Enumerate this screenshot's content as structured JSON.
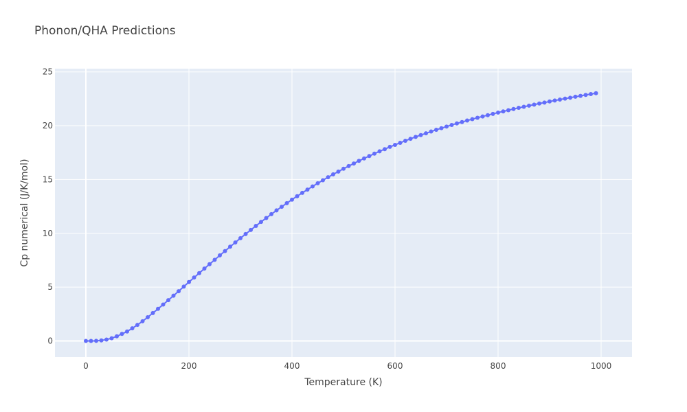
{
  "chart_data": {
    "type": "line",
    "title": "Phonon/QHA Predictions",
    "xlabel": "Temperature (K)",
    "ylabel": "Cp numerical (J/K/mol)",
    "xlim": [
      -60,
      1060
    ],
    "ylim": [
      -1.5,
      25.3
    ],
    "xticks": [
      0,
      200,
      400,
      600,
      800,
      1000
    ],
    "yticks": [
      0,
      5,
      10,
      15,
      20,
      25
    ],
    "grid": true,
    "colors": {
      "series": "#636efa",
      "plot_bg": "#e5ecf6",
      "grid": "#ffffff",
      "text": "#444444"
    },
    "series": [
      {
        "mode": "lines+markers",
        "x": [
          0,
          10,
          20,
          30,
          40,
          50,
          60,
          70,
          80,
          90,
          100,
          110,
          120,
          130,
          140,
          150,
          160,
          170,
          180,
          190,
          200,
          210,
          220,
          230,
          240,
          250,
          260,
          270,
          280,
          290,
          300,
          310,
          320,
          330,
          340,
          350,
          360,
          370,
          380,
          390,
          400,
          410,
          420,
          430,
          440,
          450,
          460,
          470,
          480,
          490,
          500,
          510,
          520,
          530,
          540,
          550,
          560,
          570,
          580,
          590,
          600,
          610,
          620,
          630,
          640,
          650,
          660,
          670,
          680,
          690,
          700,
          710,
          720,
          730,
          740,
          750,
          760,
          770,
          780,
          790,
          800,
          810,
          820,
          830,
          840,
          850,
          860,
          870,
          880,
          890,
          900,
          910,
          920,
          930,
          940,
          950,
          960,
          970,
          980,
          990
        ],
        "y": [
          0,
          0,
          0.01,
          0.05,
          0.13,
          0.25,
          0.43,
          0.65,
          0.88,
          1.17,
          1.49,
          1.83,
          2.2,
          2.59,
          2.98,
          3.38,
          3.79,
          4.2,
          4.62,
          5.05,
          5.47,
          5.89,
          6.3,
          6.72,
          7.13,
          7.54,
          7.95,
          8.35,
          8.76,
          9.15,
          9.55,
          9.93,
          10.31,
          10.69,
          11.06,
          11.42,
          11.78,
          12.13,
          12.47,
          12.8,
          13.13,
          13.45,
          13.76,
          14.06,
          14.36,
          14.65,
          14.93,
          15.21,
          15.48,
          15.74,
          16.0,
          16.25,
          16.49,
          16.73,
          16.96,
          17.18,
          17.4,
          17.62,
          17.82,
          18.03,
          18.22,
          18.41,
          18.6,
          18.78,
          18.96,
          19.13,
          19.29,
          19.46,
          19.62,
          19.77,
          19.92,
          20.07,
          20.21,
          20.34,
          20.48,
          20.61,
          20.74,
          20.86,
          20.98,
          21.1,
          21.22,
          21.33,
          21.44,
          21.55,
          21.66,
          21.76,
          21.86,
          21.96,
          22.06,
          22.15,
          22.25,
          22.34,
          22.43,
          22.52,
          22.6,
          22.69,
          22.77,
          22.86,
          22.94,
          23.02
        ]
      }
    ]
  }
}
